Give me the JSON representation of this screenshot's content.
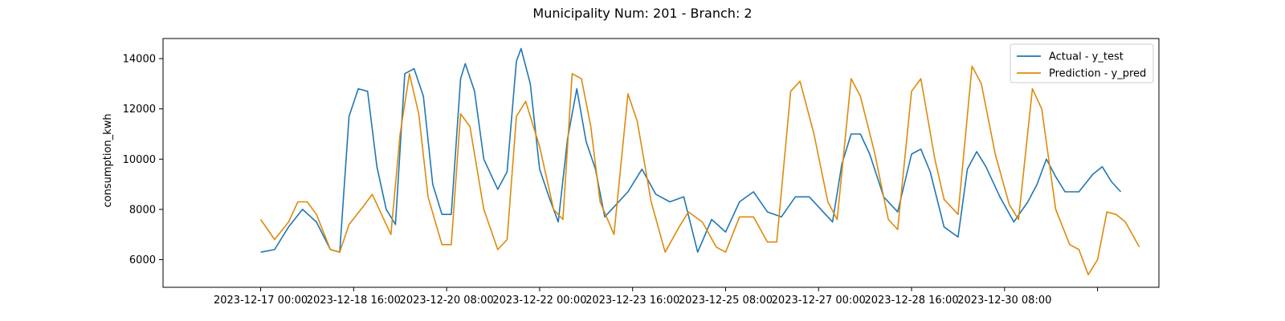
{
  "chart_data": {
    "type": "line",
    "title": "Municipality Num: 201 - Branch: 2",
    "xlabel": "",
    "ylabel": "consumption_kwh",
    "ylim": [
      4900,
      14800
    ],
    "yticks": [
      6000,
      8000,
      10000,
      12000,
      14000
    ],
    "xticks": [
      "2023-12-17 00:00",
      "2023-12-18 16:00",
      "2023-12-20 08:00",
      "2023-12-22 00:00",
      "2023-12-23 16:00",
      "2023-12-25 08:00",
      "2023-12-27 00:00",
      "2023-12-28 16:00",
      "2023-12-30 08:00",
      ""
    ],
    "grid": false,
    "legend": "top-right",
    "series": [
      {
        "name": "Actual - y_test",
        "color": "#1f77b4",
        "points": [
          [
            "2023-12-17 00:00",
            6300
          ],
          [
            "2023-12-17 06:00",
            6400
          ],
          [
            "2023-12-17 12:00",
            7300
          ],
          [
            "2023-12-17 18:00",
            8000
          ],
          [
            "2023-12-18 00:00",
            7500
          ],
          [
            "2023-12-18 06:00",
            6400
          ],
          [
            "2023-12-18 10:00",
            6300
          ],
          [
            "2023-12-18 14:00",
            11700
          ],
          [
            "2023-12-18 18:00",
            12800
          ],
          [
            "2023-12-18 22:00",
            12700
          ],
          [
            "2023-12-19 02:00",
            9700
          ],
          [
            "2023-12-19 06:00",
            8000
          ],
          [
            "2023-12-19 10:00",
            7400
          ],
          [
            "2023-12-19 14:00",
            13400
          ],
          [
            "2023-12-19 18:00",
            13600
          ],
          [
            "2023-12-19 22:00",
            12500
          ],
          [
            "2023-12-20 02:00",
            9000
          ],
          [
            "2023-12-20 06:00",
            7800
          ],
          [
            "2023-12-20 10:00",
            7800
          ],
          [
            "2023-12-20 14:00",
            13200
          ],
          [
            "2023-12-20 16:00",
            13800
          ],
          [
            "2023-12-20 20:00",
            12700
          ],
          [
            "2023-12-21 00:00",
            10000
          ],
          [
            "2023-12-21 06:00",
            8800
          ],
          [
            "2023-12-21 10:00",
            9500
          ],
          [
            "2023-12-21 14:00",
            13900
          ],
          [
            "2023-12-21 16:00",
            14400
          ],
          [
            "2023-12-21 20:00",
            13000
          ],
          [
            "2023-12-22 00:00",
            9600
          ],
          [
            "2023-12-22 04:00",
            8500
          ],
          [
            "2023-12-22 08:00",
            7500
          ],
          [
            "2023-12-22 12:00",
            10800
          ],
          [
            "2023-12-22 16:00",
            12800
          ],
          [
            "2023-12-22 20:00",
            10700
          ],
          [
            "2023-12-23 00:00",
            9600
          ],
          [
            "2023-12-23 04:00",
            7700
          ],
          [
            "2023-12-23 08:00",
            8100
          ],
          [
            "2023-12-23 14:00",
            8700
          ],
          [
            "2023-12-23 20:00",
            9600
          ],
          [
            "2023-12-24 02:00",
            8600
          ],
          [
            "2023-12-24 08:00",
            8300
          ],
          [
            "2023-12-24 14:00",
            8500
          ],
          [
            "2023-12-24 20:00",
            6300
          ],
          [
            "2023-12-25 02:00",
            7600
          ],
          [
            "2023-12-25 08:00",
            7100
          ],
          [
            "2023-12-25 14:00",
            8300
          ],
          [
            "2023-12-25 20:00",
            8700
          ],
          [
            "2023-12-26 02:00",
            7900
          ],
          [
            "2023-12-26 08:00",
            7700
          ],
          [
            "2023-12-26 14:00",
            8500
          ],
          [
            "2023-12-26 20:00",
            8500
          ],
          [
            "2023-12-27 02:00",
            7900
          ],
          [
            "2023-12-27 06:00",
            7500
          ],
          [
            "2023-12-27 10:00",
            9800
          ],
          [
            "2023-12-27 14:00",
            11000
          ],
          [
            "2023-12-27 18:00",
            11000
          ],
          [
            "2023-12-27 22:00",
            10200
          ],
          [
            "2023-12-28 04:00",
            8500
          ],
          [
            "2023-12-28 10:00",
            7900
          ],
          [
            "2023-12-28 16:00",
            10200
          ],
          [
            "2023-12-28 20:00",
            10400
          ],
          [
            "2023-12-29 00:00",
            9500
          ],
          [
            "2023-12-29 06:00",
            7300
          ],
          [
            "2023-12-29 12:00",
            6900
          ],
          [
            "2023-12-29 16:00",
            9600
          ],
          [
            "2023-12-29 20:00",
            10300
          ],
          [
            "2023-12-30 00:00",
            9700
          ],
          [
            "2023-12-30 06:00",
            8500
          ],
          [
            "2023-12-30 12:00",
            7500
          ],
          [
            "2023-12-30 18:00",
            8300
          ],
          [
            "2023-12-30 22:00",
            9000
          ],
          [
            "2023-12-31 02:00",
            10000
          ],
          [
            "2023-12-31 06:00",
            9300
          ],
          [
            "2023-12-31 10:00",
            8700
          ],
          [
            "2023-12-31 16:00",
            8700
          ],
          [
            "2023-12-31 22:00",
            9400
          ],
          [
            "2024-01-01 02:00",
            9700
          ],
          [
            "2024-01-01 06:00",
            9100
          ],
          [
            "2024-01-01 10:00",
            8700
          ]
        ]
      },
      {
        "name": "Prediction - y_pred",
        "color": "#dd8a0c",
        "points": [
          [
            "2023-12-17 00:00",
            7600
          ],
          [
            "2023-12-17 06:00",
            6800
          ],
          [
            "2023-12-17 12:00",
            7500
          ],
          [
            "2023-12-17 16:00",
            8300
          ],
          [
            "2023-12-17 20:00",
            8300
          ],
          [
            "2023-12-18 00:00",
            7800
          ],
          [
            "2023-12-18 06:00",
            6400
          ],
          [
            "2023-12-18 10:00",
            6300
          ],
          [
            "2023-12-18 14:00",
            7400
          ],
          [
            "2023-12-18 20:00",
            8100
          ],
          [
            "2023-12-19 00:00",
            8600
          ],
          [
            "2023-12-19 04:00",
            7800
          ],
          [
            "2023-12-19 08:00",
            7000
          ],
          [
            "2023-12-19 12:00",
            11000
          ],
          [
            "2023-12-19 16:00",
            13400
          ],
          [
            "2023-12-19 20:00",
            11800
          ],
          [
            "2023-12-20 00:00",
            8500
          ],
          [
            "2023-12-20 06:00",
            6600
          ],
          [
            "2023-12-20 10:00",
            6600
          ],
          [
            "2023-12-20 14:00",
            11800
          ],
          [
            "2023-12-20 18:00",
            11300
          ],
          [
            "2023-12-21 00:00",
            8000
          ],
          [
            "2023-12-21 06:00",
            6400
          ],
          [
            "2023-12-21 10:00",
            6800
          ],
          [
            "2023-12-21 14:00",
            11700
          ],
          [
            "2023-12-21 18:00",
            12300
          ],
          [
            "2023-12-22 00:00",
            10500
          ],
          [
            "2023-12-22 06:00",
            8000
          ],
          [
            "2023-12-22 10:00",
            7600
          ],
          [
            "2023-12-22 14:00",
            13400
          ],
          [
            "2023-12-22 18:00",
            13200
          ],
          [
            "2023-12-22 22:00",
            11300
          ],
          [
            "2023-12-23 02:00",
            8300
          ],
          [
            "2023-12-23 08:00",
            7000
          ],
          [
            "2023-12-23 14:00",
            12600
          ],
          [
            "2023-12-23 18:00",
            11500
          ],
          [
            "2023-12-24 00:00",
            8300
          ],
          [
            "2023-12-24 06:00",
            6300
          ],
          [
            "2023-12-24 12:00",
            7300
          ],
          [
            "2023-12-24 16:00",
            7900
          ],
          [
            "2023-12-24 22:00",
            7500
          ],
          [
            "2023-12-25 04:00",
            6500
          ],
          [
            "2023-12-25 08:00",
            6300
          ],
          [
            "2023-12-25 14:00",
            7700
          ],
          [
            "2023-12-25 20:00",
            7700
          ],
          [
            "2023-12-26 02:00",
            6700
          ],
          [
            "2023-12-26 06:00",
            6700
          ],
          [
            "2023-12-26 12:00",
            12700
          ],
          [
            "2023-12-26 16:00",
            13100
          ],
          [
            "2023-12-26 22:00",
            11000
          ],
          [
            "2023-12-27 04:00",
            8300
          ],
          [
            "2023-12-27 08:00",
            7600
          ],
          [
            "2023-12-27 14:00",
            13200
          ],
          [
            "2023-12-27 18:00",
            12500
          ],
          [
            "2023-12-28 00:00",
            10300
          ],
          [
            "2023-12-28 06:00",
            7600
          ],
          [
            "2023-12-28 10:00",
            7200
          ],
          [
            "2023-12-28 16:00",
            12700
          ],
          [
            "2023-12-28 20:00",
            13200
          ],
          [
            "2023-12-29 02:00",
            10000
          ],
          [
            "2023-12-29 06:00",
            8400
          ],
          [
            "2023-12-29 12:00",
            7800
          ],
          [
            "2023-12-29 18:00",
            13700
          ],
          [
            "2023-12-29 22:00",
            13000
          ],
          [
            "2023-12-30 04:00",
            10200
          ],
          [
            "2023-12-30 10:00",
            8200
          ],
          [
            "2023-12-30 14:00",
            7600
          ],
          [
            "2023-12-30 20:00",
            12800
          ],
          [
            "2023-12-31 00:00",
            12000
          ],
          [
            "2023-12-31 06:00",
            8000
          ],
          [
            "2023-12-31 12:00",
            6600
          ],
          [
            "2023-12-31 16:00",
            6400
          ],
          [
            "2023-12-31 20:00",
            5400
          ],
          [
            "2024-01-01 00:00",
            6000
          ],
          [
            "2024-01-01 04:00",
            7900
          ],
          [
            "2024-01-01 08:00",
            7800
          ],
          [
            "2024-01-01 12:00",
            7500
          ],
          [
            "2024-01-01 18:00",
            6500
          ]
        ]
      }
    ]
  }
}
